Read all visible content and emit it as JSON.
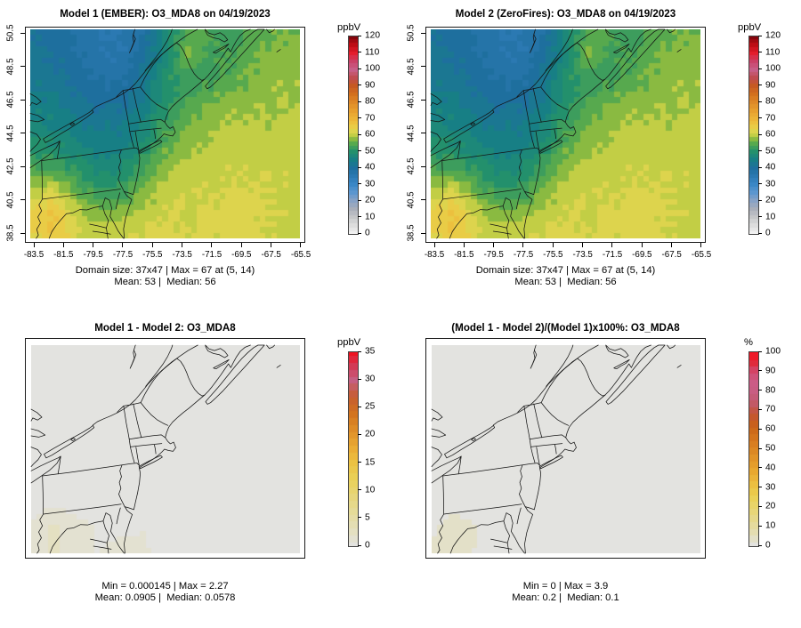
{
  "chart_data": {
    "type": "heatmap",
    "figure_kind": "model-comparison-map-panels",
    "panels": [
      {
        "id": "model1-ember",
        "title": "Model 1 (EMBER): O3_MDA8 on 04/19/2023",
        "caption1": "Domain size: 37x47 | Max = 67 at (5, 14)",
        "caption2": "Mean: 53 |  Median: 56",
        "colorbar": {
          "label": "ppbV",
          "max": 120,
          "ticks": [
            0,
            10,
            20,
            30,
            40,
            50,
            60,
            70,
            80,
            90,
            100,
            110,
            120
          ]
        },
        "grid": "o3",
        "scale": "main"
      },
      {
        "id": "model2-zerofires",
        "title": "Model 2 (ZeroFires): O3_MDA8 on 04/19/2023",
        "caption1": "Domain size: 37x47 | Max = 67 at (5, 14)",
        "caption2": "Mean: 53 |  Median: 56",
        "colorbar": {
          "label": "ppbV",
          "max": 120,
          "ticks": [
            0,
            10,
            20,
            30,
            40,
            50,
            60,
            70,
            80,
            90,
            100,
            110,
            120
          ]
        },
        "grid": "o3",
        "scale": "main"
      },
      {
        "id": "model1-minus-model2",
        "title": "Model 1 - Model 2: O3_MDA8",
        "caption1": "Min = 0.000145 | Max = 2.27",
        "caption2": "Mean: 0.0905 |  Median: 0.0578",
        "colorbar": {
          "label": "ppbV",
          "max": 35,
          "ticks": [
            0,
            5,
            10,
            15,
            20,
            25,
            30,
            35
          ]
        },
        "grid": "diff",
        "scale": "diff"
      },
      {
        "id": "percent-difference",
        "title": "(Model 1 - Model 2)/(Model 1)x100%: O3_MDA8",
        "caption1": "Min = 0 | Max = 3.9",
        "caption2": "Mean: 0.2 |  Median: 0.1",
        "colorbar": {
          "label": "%",
          "max": 100,
          "ticks": [
            0,
            10,
            20,
            30,
            40,
            50,
            60,
            70,
            80,
            90,
            100
          ]
        },
        "grid": "pct",
        "scale": "pct"
      }
    ],
    "axis": {
      "x_ticks": [
        -83.5,
        -81.5,
        -79.5,
        -77.5,
        -75.5,
        -73.5,
        -71.5,
        -69.5,
        -67.5,
        -65.5
      ],
      "y_ticks": [
        38.5,
        40.5,
        42.5,
        44.5,
        46.5,
        48.5,
        50.5
      ]
    },
    "domain_cells": {
      "nx": 47,
      "ny": 37
    },
    "grids": {
      "o3": [
        [
          41,
          40,
          38,
          37,
          36,
          39,
          47,
          55,
          53,
          52,
          55,
          56,
          57
        ],
        [
          42,
          41,
          39,
          37,
          36,
          40,
          48,
          56,
          54,
          53,
          56,
          57,
          57
        ],
        [
          43,
          42,
          40,
          38,
          38,
          42,
          50,
          53,
          52,
          55,
          57,
          58,
          58
        ],
        [
          45,
          44,
          42,
          40,
          40,
          44,
          50,
          54,
          56,
          57,
          58,
          58,
          59
        ],
        [
          47,
          46,
          44,
          43,
          43,
          46,
          52,
          56,
          58,
          59,
          59,
          59,
          60
        ],
        [
          50,
          49,
          47,
          45,
          45,
          49,
          55,
          58,
          59,
          60,
          60,
          60,
          60
        ],
        [
          55,
          53,
          51,
          48,
          48,
          53,
          58,
          60,
          60,
          61,
          61,
          61,
          60
        ],
        [
          60,
          62,
          56,
          52,
          52,
          57,
          60,
          61,
          61,
          62,
          62,
          61,
          60
        ],
        [
          64,
          67,
          61,
          57,
          58,
          60,
          61,
          61,
          62,
          63,
          62,
          61,
          60
        ],
        [
          63,
          65,
          62,
          60,
          61,
          62,
          62,
          61,
          62,
          62,
          62,
          61,
          60
        ]
      ],
      "diff": [
        [
          0,
          0,
          0,
          0,
          0,
          0,
          0,
          0,
          0,
          0,
          0,
          0,
          0
        ],
        [
          0,
          0,
          0,
          0,
          0,
          0,
          0,
          0,
          0,
          0,
          0,
          0,
          0
        ],
        [
          0,
          0,
          0,
          0,
          0,
          0,
          0,
          0,
          0,
          0,
          0,
          0,
          0
        ],
        [
          0,
          0,
          0,
          0,
          0,
          0,
          0,
          0,
          0,
          0,
          0,
          0,
          0
        ],
        [
          0,
          0,
          0,
          0,
          0,
          0,
          0,
          0,
          0,
          0,
          0,
          0,
          0
        ],
        [
          0,
          0,
          0,
          0,
          0,
          0,
          0,
          0,
          0,
          0,
          0,
          0,
          0
        ],
        [
          0,
          0,
          0,
          0,
          0,
          0,
          0,
          0,
          0,
          0,
          0,
          0,
          0
        ],
        [
          0.2,
          0.5,
          0.3,
          0.1,
          0,
          0,
          0,
          0,
          0,
          0,
          0,
          0,
          0
        ],
        [
          0.8,
          2.3,
          1.2,
          0.5,
          0.3,
          0.6,
          0.2,
          0,
          0,
          0,
          0,
          0,
          0
        ],
        [
          1.5,
          2.0,
          1.0,
          0.6,
          1.2,
          0.8,
          0.3,
          0,
          0,
          0,
          0,
          0,
          0
        ]
      ],
      "pct": [
        [
          0,
          0,
          0,
          0,
          0,
          0,
          0,
          0,
          0,
          0,
          0,
          0,
          0
        ],
        [
          0,
          0,
          0,
          0,
          0,
          0,
          0,
          0,
          0,
          0,
          0,
          0,
          0
        ],
        [
          0,
          0,
          0,
          0,
          0,
          0,
          0,
          0,
          0,
          0,
          0,
          0,
          0
        ],
        [
          0,
          0,
          0,
          0,
          0,
          0,
          0,
          0,
          0,
          0,
          0,
          0,
          0
        ],
        [
          0,
          0,
          0,
          0,
          0,
          0,
          0,
          0,
          0,
          0,
          0,
          0,
          0
        ],
        [
          0,
          0,
          0,
          0,
          0,
          0,
          0,
          0,
          0,
          0,
          0,
          0,
          0
        ],
        [
          0,
          0,
          0,
          0,
          0,
          0,
          0,
          0,
          0,
          0,
          0,
          0,
          0
        ],
        [
          0.3,
          0.8,
          0.5,
          0.2,
          0,
          0,
          0,
          0,
          0,
          0,
          0,
          0,
          0
        ],
        [
          1.2,
          3.9,
          1.8,
          0.8,
          0.5,
          1.0,
          0.3,
          0,
          0,
          0,
          0,
          0,
          0
        ],
        [
          2.2,
          3.0,
          1.5,
          0.9,
          1.8,
          1.2,
          0.5,
          0,
          0,
          0,
          0,
          0,
          0
        ]
      ]
    },
    "scales": {
      "main": [
        [
          0,
          "#f1f1f1"
        ],
        [
          5,
          "#dddddd"
        ],
        [
          10,
          "#c5c6c8"
        ],
        [
          15,
          "#a9aeb9"
        ],
        [
          20,
          "#87a2c6"
        ],
        [
          25,
          "#5b96cf"
        ],
        [
          30,
          "#3a87c6"
        ],
        [
          35,
          "#2b79b2"
        ],
        [
          40,
          "#1e6f9e"
        ],
        [
          45,
          "#177f85"
        ],
        [
          50,
          "#23906c"
        ],
        [
          55,
          "#57a94e"
        ],
        [
          57.5,
          "#8aba41"
        ],
        [
          60,
          "#c2ce45"
        ],
        [
          62.5,
          "#ddd44d"
        ],
        [
          65,
          "#e9cc46"
        ],
        [
          67.5,
          "#ecc03e"
        ],
        [
          70,
          "#ecb437"
        ],
        [
          75,
          "#e79f2e"
        ],
        [
          80,
          "#de8827"
        ],
        [
          85,
          "#d3701d"
        ],
        [
          90,
          "#c65a22"
        ],
        [
          95,
          "#c04c50"
        ],
        [
          100,
          "#c75f88"
        ],
        [
          105,
          "#cb4067"
        ],
        [
          110,
          "#e41d2c"
        ],
        [
          115,
          "#bd0d14"
        ],
        [
          120,
          "#83050b"
        ]
      ],
      "diff": [
        [
          0,
          "#e3e3e0"
        ],
        [
          3,
          "#e4dfbb"
        ],
        [
          6,
          "#e5db9b"
        ],
        [
          9,
          "#e7d679"
        ],
        [
          12,
          "#e9d158"
        ],
        [
          15,
          "#ecc243"
        ],
        [
          18,
          "#e9a932"
        ],
        [
          21,
          "#de8d28"
        ],
        [
          24,
          "#d2721e"
        ],
        [
          27,
          "#c65c2f"
        ],
        [
          30,
          "#c55f83"
        ],
        [
          32.5,
          "#d23a55"
        ],
        [
          35,
          "#ee1220"
        ]
      ],
      "pct": [
        [
          0,
          "#e3e3e0"
        ],
        [
          8,
          "#e4dcaa"
        ],
        [
          16,
          "#e7d77f"
        ],
        [
          24,
          "#ead25a"
        ],
        [
          30,
          "#ecc444"
        ],
        [
          38,
          "#eaa930"
        ],
        [
          46,
          "#e09126"
        ],
        [
          54,
          "#d67a1e"
        ],
        [
          62,
          "#c96218"
        ],
        [
          68,
          "#c35433"
        ],
        [
          75,
          "#c25a72"
        ],
        [
          83,
          "#ca5f8a"
        ],
        [
          90,
          "#d14a70"
        ],
        [
          95,
          "#e22736"
        ],
        [
          100,
          "#f60f1f"
        ]
      ]
    }
  }
}
